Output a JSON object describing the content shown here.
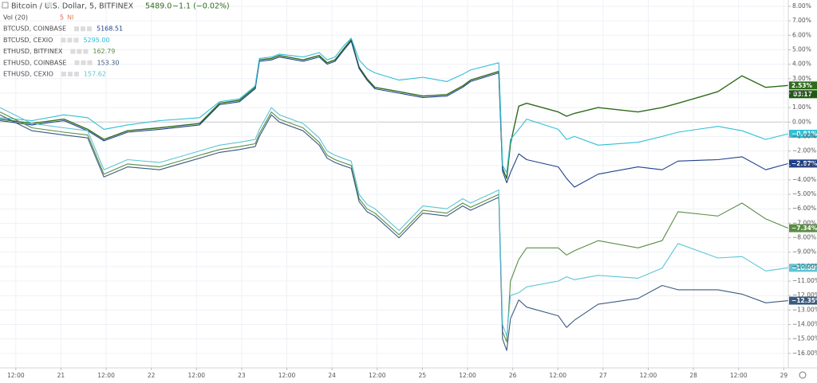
{
  "chart_data": {
    "type": "line",
    "last_price": "5489.0",
    "change": "−1.1 (−0.02%)",
    "volume_label": "Vol (20)",
    "volume_value": "5",
    "volume_ma": "NI",
    "countdown": "03:17",
    "x": [
      7.8,
      16.3,
      24.8,
      31.1,
      35.4,
      41.7,
      50.2,
      60.8,
      66.1,
      71.4,
      75.6,
      76.7,
      79.9,
      82.0,
      88.3,
      92.6,
      94.7,
      96.8,
      98.9,
      101.1,
      103.2,
      105.3,
      107.4,
      113.8,
      120.1,
      126.5,
      130.7,
      132.8,
      140.3,
      141.3,
      142.4,
      143.4,
      145.6,
      147.7,
      156.1,
      158.3,
      160.4,
      166.7,
      177.3,
      183.7,
      187.9,
      198.5,
      204.9,
      211.2,
      217.2
    ],
    "xlim": [
      7.8,
      217.2
    ],
    "xticks": [
      {
        "value": 12,
        "label": "12:00"
      },
      {
        "value": 24,
        "label": "21"
      },
      {
        "value": 36,
        "label": "12:00"
      },
      {
        "value": 48,
        "label": "22"
      },
      {
        "value": 60,
        "label": "12:00"
      },
      {
        "value": 72,
        "label": "23"
      },
      {
        "value": 84,
        "label": "12:00"
      },
      {
        "value": 96,
        "label": "24"
      },
      {
        "value": 108,
        "label": "12:00"
      },
      {
        "value": 120,
        "label": "25"
      },
      {
        "value": 132,
        "label": "12:00"
      },
      {
        "value": 144,
        "label": "26"
      },
      {
        "value": 156,
        "label": "12:00"
      },
      {
        "value": 168,
        "label": "27"
      },
      {
        "value": 180,
        "label": "12:00"
      },
      {
        "value": 192,
        "label": "28"
      },
      {
        "value": 204,
        "label": "12:00"
      },
      {
        "value": 216,
        "label": "29"
      }
    ],
    "ylim": [
      -17,
      8.44
    ],
    "yticks": [
      {
        "value": 8,
        "label": "8.00%"
      },
      {
        "value": 7,
        "label": "7.00%"
      },
      {
        "value": 6,
        "label": "6.00%"
      },
      {
        "value": 5,
        "label": "5.00%"
      },
      {
        "value": 4,
        "label": "4.00%"
      },
      {
        "value": 3,
        "label": "3.00%"
      },
      {
        "value": 2,
        "label": "2.00%"
      },
      {
        "value": 1,
        "label": "1.00%"
      },
      {
        "value": 0,
        "label": "0.00%"
      },
      {
        "value": -1,
        "label": "−1.00%"
      },
      {
        "value": -2,
        "label": "−2.00%"
      },
      {
        "value": -3,
        "label": "−3.00%"
      },
      {
        "value": -4,
        "label": "−4.00%"
      },
      {
        "value": -5,
        "label": "−5.00%"
      },
      {
        "value": -6,
        "label": "−6.00%"
      },
      {
        "value": -7,
        "label": "−7.00%"
      },
      {
        "value": -8,
        "label": "−8.00%"
      },
      {
        "value": -9,
        "label": "−9.00%"
      },
      {
        "value": -10,
        "label": "−10.00%"
      },
      {
        "value": -11,
        "label": "−11.00%"
      },
      {
        "value": -12,
        "label": "−12.00%"
      },
      {
        "value": -13,
        "label": "−13.00%"
      },
      {
        "value": -14,
        "label": "−14.00%"
      },
      {
        "value": -15,
        "label": "−15.00%"
      },
      {
        "value": -16,
        "label": "−16.00%"
      }
    ],
    "grid": true,
    "series": [
      {
        "name": "Bitcoin / U.S. Dollar, 5, BITFINEX",
        "color": "#2e6b1a",
        "end_label": "2.53%",
        "values": [
          0.2,
          -0.1,
          0.2,
          -0.5,
          -1.2,
          -0.6,
          -0.4,
          -0.1,
          1.3,
          1.5,
          2.4,
          4.3,
          4.4,
          4.6,
          4.3,
          4.6,
          4.1,
          4.3,
          5.0,
          5.7,
          3.8,
          3.0,
          2.4,
          2.1,
          1.8,
          1.9,
          2.5,
          2.9,
          3.5,
          -3.2,
          -3.9,
          -1.5,
          1.1,
          1.3,
          0.7,
          0.4,
          0.6,
          1.0,
          0.7,
          1.0,
          1.3,
          2.1,
          3.2,
          2.4,
          2.53
        ]
      },
      {
        "name": "BTCUSD, COINBASE",
        "price": "5168.51",
        "color": "#1e3f8a",
        "end_label": "−2.87%",
        "values": [
          0.1,
          -0.2,
          0.1,
          -0.6,
          -1.3,
          -0.7,
          -0.5,
          -0.2,
          1.2,
          1.4,
          2.3,
          4.2,
          4.3,
          4.5,
          4.2,
          4.5,
          4.0,
          4.2,
          4.9,
          5.6,
          3.7,
          2.9,
          2.3,
          2.0,
          1.7,
          1.8,
          2.4,
          2.8,
          3.4,
          -3.4,
          -4.2,
          -3.5,
          -2.2,
          -2.6,
          -3.1,
          -3.9,
          -4.5,
          -3.6,
          -3.1,
          -3.3,
          -2.7,
          -2.6,
          -2.4,
          -3.3,
          -2.87
        ]
      },
      {
        "name": "BTCUSD, CEXIO",
        "price": "5295.00",
        "color": "#2fbfd6",
        "end_label": "−0.81%",
        "values": [
          0.3,
          0.1,
          0.5,
          0.3,
          -0.5,
          -0.2,
          0.1,
          0.3,
          1.4,
          1.6,
          2.5,
          4.4,
          4.5,
          4.7,
          4.5,
          4.8,
          4.3,
          4.5,
          5.2,
          5.8,
          4.3,
          3.7,
          3.4,
          2.9,
          3.1,
          2.8,
          3.3,
          3.6,
          4.1,
          -3.0,
          -3.5,
          -1.2,
          -0.5,
          0.2,
          -0.5,
          -1.2,
          -1.0,
          -1.6,
          -1.4,
          -1.0,
          -0.7,
          -0.3,
          -0.6,
          -1.2,
          -0.81
        ]
      },
      {
        "name": "ETHUSD, BITFINEX",
        "price": "162.79",
        "color": "#5b8c45",
        "end_label": "−7.34%",
        "values": [
          0.7,
          -0.4,
          -0.7,
          -0.9,
          -3.6,
          -2.9,
          -3.1,
          -2.3,
          -1.9,
          -1.7,
          -1.5,
          -0.8,
          0.7,
          0.2,
          -0.4,
          -1.4,
          -2.3,
          -2.6,
          -2.8,
          -3.0,
          -5.3,
          -6.0,
          -6.3,
          -7.8,
          -6.1,
          -6.3,
          -5.6,
          -5.9,
          -5.0,
          -14.5,
          -15.2,
          -11.0,
          -9.5,
          -8.7,
          -8.7,
          -9.2,
          -8.9,
          -8.2,
          -8.7,
          -8.2,
          -6.2,
          -6.5,
          -5.6,
          -6.7,
          -7.34
        ]
      },
      {
        "name": "ETHUSD, COINBASE",
        "price": "153.30",
        "color": "#3b5a80",
        "end_label": "−12.35%",
        "values": [
          0.5,
          -0.6,
          -0.9,
          -1.1,
          -3.8,
          -3.1,
          -3.3,
          -2.5,
          -2.1,
          -1.9,
          -1.7,
          -1.0,
          0.5,
          0.0,
          -0.6,
          -1.6,
          -2.5,
          -2.8,
          -3.0,
          -3.2,
          -5.5,
          -6.2,
          -6.5,
          -8.0,
          -6.3,
          -6.5,
          -5.8,
          -6.1,
          -5.2,
          -15.0,
          -15.8,
          -13.6,
          -12.3,
          -12.8,
          -13.4,
          -14.2,
          -13.7,
          -12.6,
          -12.2,
          -11.3,
          -11.6,
          -11.6,
          -11.9,
          -12.5,
          -12.35
        ]
      },
      {
        "name": "ETHUSD, CEXIO",
        "price": "157.62",
        "color": "#5cc5d5",
        "end_label": "−10.08%",
        "values": [
          1.0,
          -0.1,
          -0.4,
          -0.6,
          -3.3,
          -2.6,
          -2.8,
          -2.0,
          -1.6,
          -1.4,
          -1.2,
          -0.5,
          1.0,
          0.5,
          -0.1,
          -1.1,
          -2.0,
          -2.3,
          -2.5,
          -2.7,
          -5.0,
          -5.7,
          -6.0,
          -7.5,
          -5.8,
          -6.0,
          -5.3,
          -5.6,
          -4.7,
          -14.0,
          -14.8,
          -12.0,
          -11.8,
          -11.4,
          -11.0,
          -10.7,
          -10.9,
          -10.6,
          -10.8,
          -10.1,
          -8.4,
          -9.4,
          -9.3,
          -10.3,
          -10.08
        ]
      }
    ]
  }
}
